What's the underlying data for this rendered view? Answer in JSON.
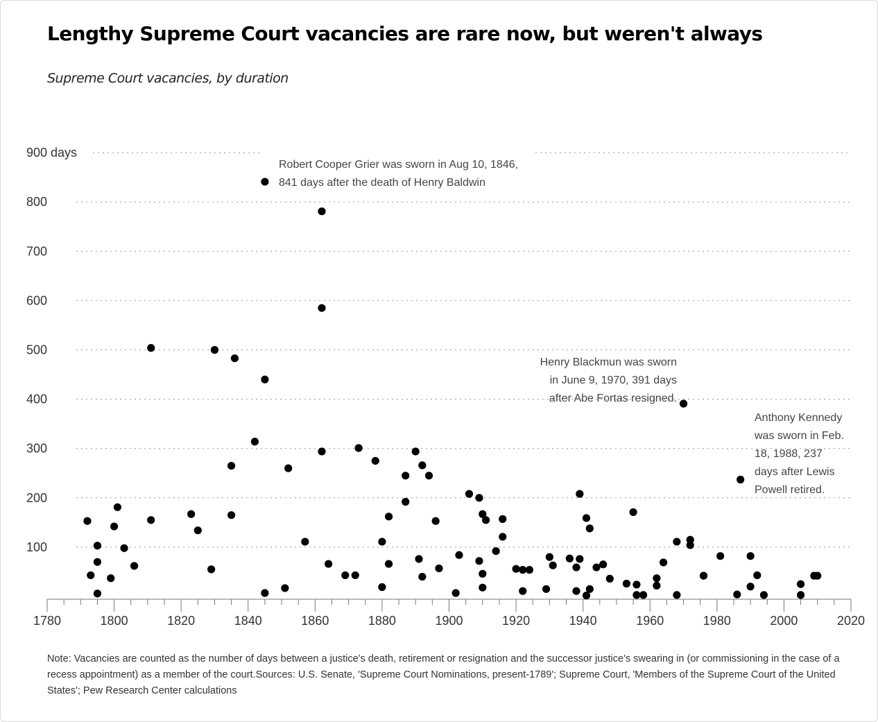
{
  "header": {
    "title": "Lengthy Supreme Court vacancies are rare now, but weren't always",
    "subtitle": "Supreme Court vacancies, by duration"
  },
  "footer": {
    "note": "Note: Vacancies are counted as the number of days between a justice's death, retirement or resignation and the successor justice's swearing in (or commissioning in the case of a recess appointment) as a member of the court.Sources: U.S. Senate, 'Supreme Court Nominations, present-1789'; Supreme Court, 'Members of the Supreme Court of the United States'; Pew Research Center calculations"
  },
  "chart_data": {
    "type": "scatter",
    "title": "Lengthy Supreme Court vacancies are rare now, but weren't always",
    "subtitle": "Supreme Court vacancies, by duration",
    "xlabel": "",
    "ylabel": "",
    "y_unit": "days",
    "xlim": [
      1780,
      2020
    ],
    "ylim": [
      0,
      900
    ],
    "x_ticks": [
      1780,
      1800,
      1820,
      1840,
      1860,
      1880,
      1900,
      1920,
      1940,
      1960,
      1980,
      2000,
      2020
    ],
    "y_ticks": [
      100,
      200,
      300,
      400,
      500,
      600,
      700,
      800,
      900
    ],
    "grid": "horizontal dotted",
    "legend": "none",
    "point_color": "#000000",
    "points": [
      {
        "x": 1792,
        "y": 153
      },
      {
        "x": 1793,
        "y": 43
      },
      {
        "x": 1795,
        "y": 103
      },
      {
        "x": 1795,
        "y": 70
      },
      {
        "x": 1795,
        "y": 6
      },
      {
        "x": 1799,
        "y": 37
      },
      {
        "x": 1800,
        "y": 142
      },
      {
        "x": 1801,
        "y": 181
      },
      {
        "x": 1803,
        "y": 98
      },
      {
        "x": 1806,
        "y": 62
      },
      {
        "x": 1811,
        "y": 504
      },
      {
        "x": 1811,
        "y": 155
      },
      {
        "x": 1823,
        "y": 167
      },
      {
        "x": 1825,
        "y": 134
      },
      {
        "x": 1829,
        "y": 55
      },
      {
        "x": 1830,
        "y": 500
      },
      {
        "x": 1835,
        "y": 265
      },
      {
        "x": 1835,
        "y": 165
      },
      {
        "x": 1836,
        "y": 483
      },
      {
        "x": 1842,
        "y": 314
      },
      {
        "x": 1845,
        "y": 841
      },
      {
        "x": 1845,
        "y": 440
      },
      {
        "x": 1845,
        "y": 7
      },
      {
        "x": 1851,
        "y": 17
      },
      {
        "x": 1852,
        "y": 260
      },
      {
        "x": 1857,
        "y": 111
      },
      {
        "x": 1862,
        "y": 781
      },
      {
        "x": 1862,
        "y": 585
      },
      {
        "x": 1862,
        "y": 294
      },
      {
        "x": 1864,
        "y": 66
      },
      {
        "x": 1869,
        "y": 43
      },
      {
        "x": 1872,
        "y": 43
      },
      {
        "x": 1873,
        "y": 301
      },
      {
        "x": 1878,
        "y": 275
      },
      {
        "x": 1880,
        "y": 111
      },
      {
        "x": 1880,
        "y": 19
      },
      {
        "x": 1882,
        "y": 162
      },
      {
        "x": 1882,
        "y": 66
      },
      {
        "x": 1887,
        "y": 245
      },
      {
        "x": 1887,
        "y": 192
      },
      {
        "x": 1890,
        "y": 294
      },
      {
        "x": 1891,
        "y": 76
      },
      {
        "x": 1892,
        "y": 266
      },
      {
        "x": 1892,
        "y": 40
      },
      {
        "x": 1894,
        "y": 245
      },
      {
        "x": 1896,
        "y": 153
      },
      {
        "x": 1897,
        "y": 57
      },
      {
        "x": 1902,
        "y": 7
      },
      {
        "x": 1903,
        "y": 84
      },
      {
        "x": 1906,
        "y": 208
      },
      {
        "x": 1909,
        "y": 200
      },
      {
        "x": 1909,
        "y": 72
      },
      {
        "x": 1910,
        "y": 167
      },
      {
        "x": 1910,
        "y": 46
      },
      {
        "x": 1910,
        "y": 18
      },
      {
        "x": 1911,
        "y": 155
      },
      {
        "x": 1914,
        "y": 92
      },
      {
        "x": 1916,
        "y": 157
      },
      {
        "x": 1916,
        "y": 121
      },
      {
        "x": 1920,
        "y": 56
      },
      {
        "x": 1922,
        "y": 54
      },
      {
        "x": 1922,
        "y": 11
      },
      {
        "x": 1924,
        "y": 54
      },
      {
        "x": 1929,
        "y": 15
      },
      {
        "x": 1930,
        "y": 80
      },
      {
        "x": 1931,
        "y": 63
      },
      {
        "x": 1936,
        "y": 77
      },
      {
        "x": 1938,
        "y": 59
      },
      {
        "x": 1938,
        "y": 11
      },
      {
        "x": 1939,
        "y": 208
      },
      {
        "x": 1939,
        "y": 76
      },
      {
        "x": 1941,
        "y": 159
      },
      {
        "x": 1941,
        "y": 2
      },
      {
        "x": 1942,
        "y": 138
      },
      {
        "x": 1942,
        "y": 15
      },
      {
        "x": 1944,
        "y": 59
      },
      {
        "x": 1946,
        "y": 65
      },
      {
        "x": 1948,
        "y": 36
      },
      {
        "x": 1953,
        "y": 26
      },
      {
        "x": 1955,
        "y": 171
      },
      {
        "x": 1956,
        "y": 24
      },
      {
        "x": 1956,
        "y": 3
      },
      {
        "x": 1958,
        "y": 3
      },
      {
        "x": 1962,
        "y": 37
      },
      {
        "x": 1962,
        "y": 22
      },
      {
        "x": 1964,
        "y": 69
      },
      {
        "x": 1968,
        "y": 111
      },
      {
        "x": 1968,
        "y": 3
      },
      {
        "x": 1970,
        "y": 391
      },
      {
        "x": 1972,
        "y": 115
      },
      {
        "x": 1972,
        "y": 104
      },
      {
        "x": 1976,
        "y": 42
      },
      {
        "x": 1981,
        "y": 82
      },
      {
        "x": 1986,
        "y": 4
      },
      {
        "x": 1987,
        "y": 237
      },
      {
        "x": 1990,
        "y": 82
      },
      {
        "x": 1990,
        "y": 20
      },
      {
        "x": 1992,
        "y": 43
      },
      {
        "x": 1994,
        "y": 3
      },
      {
        "x": 2005,
        "y": 25
      },
      {
        "x": 2005,
        "y": 3
      },
      {
        "x": 2009,
        "y": 42
      },
      {
        "x": 2010,
        "y": 42
      }
    ],
    "annotations": [
      {
        "lines": [
          "Robert Cooper Grier was sworn in Aug 10, 1846,",
          "841 days after the death of Henry Baldwin"
        ],
        "x": 1845,
        "y": 841
      },
      {
        "lines": [
          "Henry Blackmun was sworn",
          "in June 9, 1970, 391 days",
          "after Abe Fortas resigned."
        ],
        "x": 1970,
        "y": 391
      },
      {
        "lines": [
          "Anthony Kennedy",
          "was sworn in Feb.",
          "18, 1988, 237",
          "days after Lewis",
          "Powell retired."
        ],
        "x": 1987,
        "y": 237
      }
    ]
  }
}
